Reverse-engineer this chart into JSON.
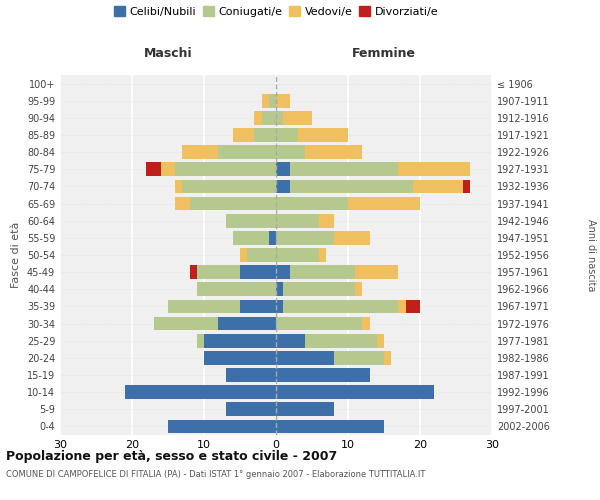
{
  "age_groups": [
    "0-4",
    "5-9",
    "10-14",
    "15-19",
    "20-24",
    "25-29",
    "30-34",
    "35-39",
    "40-44",
    "45-49",
    "50-54",
    "55-59",
    "60-64",
    "65-69",
    "70-74",
    "75-79",
    "80-84",
    "85-89",
    "90-94",
    "95-99",
    "100+"
  ],
  "birth_years": [
    "2002-2006",
    "1997-2001",
    "1992-1996",
    "1987-1991",
    "1982-1986",
    "1977-1981",
    "1972-1976",
    "1967-1971",
    "1962-1966",
    "1957-1961",
    "1952-1956",
    "1947-1951",
    "1942-1946",
    "1937-1941",
    "1932-1936",
    "1927-1931",
    "1922-1926",
    "1917-1921",
    "1912-1916",
    "1907-1911",
    "≤ 1906"
  ],
  "males": {
    "celibi": [
      15,
      7,
      21,
      7,
      10,
      10,
      8,
      5,
      0,
      5,
      0,
      1,
      0,
      0,
      0,
      0,
      0,
      0,
      0,
      0,
      0
    ],
    "coniugati": [
      0,
      0,
      0,
      0,
      0,
      1,
      9,
      10,
      11,
      6,
      4,
      5,
      7,
      12,
      13,
      14,
      8,
      3,
      2,
      1,
      0
    ],
    "vedovi": [
      0,
      0,
      0,
      0,
      0,
      0,
      0,
      0,
      0,
      0,
      1,
      0,
      0,
      2,
      1,
      2,
      5,
      3,
      1,
      1,
      0
    ],
    "divorziati": [
      0,
      0,
      0,
      0,
      0,
      0,
      0,
      0,
      0,
      1,
      0,
      0,
      0,
      0,
      0,
      2,
      0,
      0,
      0,
      0,
      0
    ]
  },
  "females": {
    "nubili": [
      15,
      8,
      22,
      13,
      8,
      4,
      0,
      1,
      1,
      2,
      0,
      0,
      0,
      0,
      2,
      2,
      0,
      0,
      0,
      0,
      0
    ],
    "coniugate": [
      0,
      0,
      0,
      0,
      7,
      10,
      12,
      16,
      10,
      9,
      6,
      8,
      6,
      10,
      17,
      15,
      4,
      3,
      1,
      0,
      0
    ],
    "vedove": [
      0,
      0,
      0,
      0,
      1,
      1,
      1,
      1,
      1,
      6,
      1,
      5,
      2,
      10,
      7,
      10,
      8,
      7,
      4,
      2,
      0
    ],
    "divorziate": [
      0,
      0,
      0,
      0,
      0,
      0,
      0,
      2,
      0,
      0,
      0,
      0,
      0,
      0,
      1,
      0,
      0,
      0,
      0,
      0,
      0
    ]
  },
  "color_celibi": "#3d6fa8",
  "color_coniugati": "#b5c98e",
  "color_vedovi": "#f0c060",
  "color_divorziati": "#c0201a",
  "title": "Popolazione per età, sesso e stato civile - 2007",
  "subtitle": "COMUNE DI CAMPOFELICE DI FITALIA (PA) - Dati ISTAT 1° gennaio 2007 - Elaborazione TUTTITALIA.IT",
  "xlabel_left": "Maschi",
  "xlabel_right": "Femmine",
  "ylabel_left": "Fasce di età",
  "ylabel_right": "Anni di nascita",
  "xlim": 30,
  "legend_labels": [
    "Celibi/Nubili",
    "Coniugati/e",
    "Vedovi/e",
    "Divorziati/e"
  ],
  "bg_color": "#f5f5f5",
  "grid_color": "#cccccc"
}
